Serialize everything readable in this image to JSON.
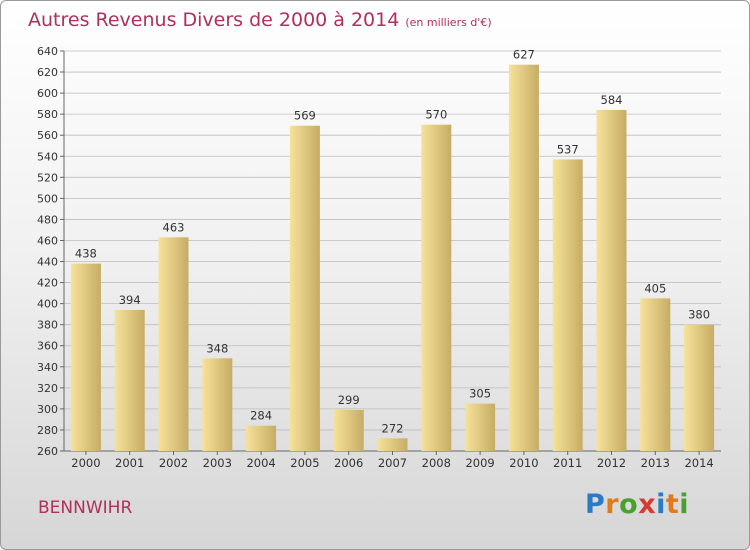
{
  "header": {
    "title": "Autres Revenus Divers de 2000 à 2014",
    "subtitle": "(en milliers d'€)"
  },
  "footer": {
    "commune": "BENNWIHR",
    "logo_text": "Proxiti",
    "logo_colors": [
      "#2a7bc6",
      "#e07b1d",
      "#4aa02c",
      "#d53b2f",
      "#2a7bc6",
      "#e07b1d",
      "#4aa02c"
    ]
  },
  "colors": {
    "title": "#b0305a",
    "bar_light": "#f7e29b",
    "bar_dark": "#c6ac64",
    "grid": "#bdbdbd"
  },
  "chart_data": {
    "type": "bar",
    "categories": [
      "2000",
      "2001",
      "2002",
      "2003",
      "2004",
      "2005",
      "2006",
      "2007",
      "2008",
      "2009",
      "2010",
      "2011",
      "2012",
      "2013",
      "2014"
    ],
    "values": [
      438,
      394,
      463,
      348,
      284,
      569,
      299,
      272,
      570,
      305,
      627,
      537,
      584,
      405,
      380
    ],
    "ylim": [
      260,
      640
    ],
    "yticks": [
      260,
      280,
      300,
      320,
      340,
      360,
      380,
      400,
      420,
      440,
      460,
      480,
      500,
      520,
      540,
      560,
      580,
      600,
      620,
      640
    ],
    "grid": true,
    "xlabel": "",
    "ylabel": ""
  }
}
